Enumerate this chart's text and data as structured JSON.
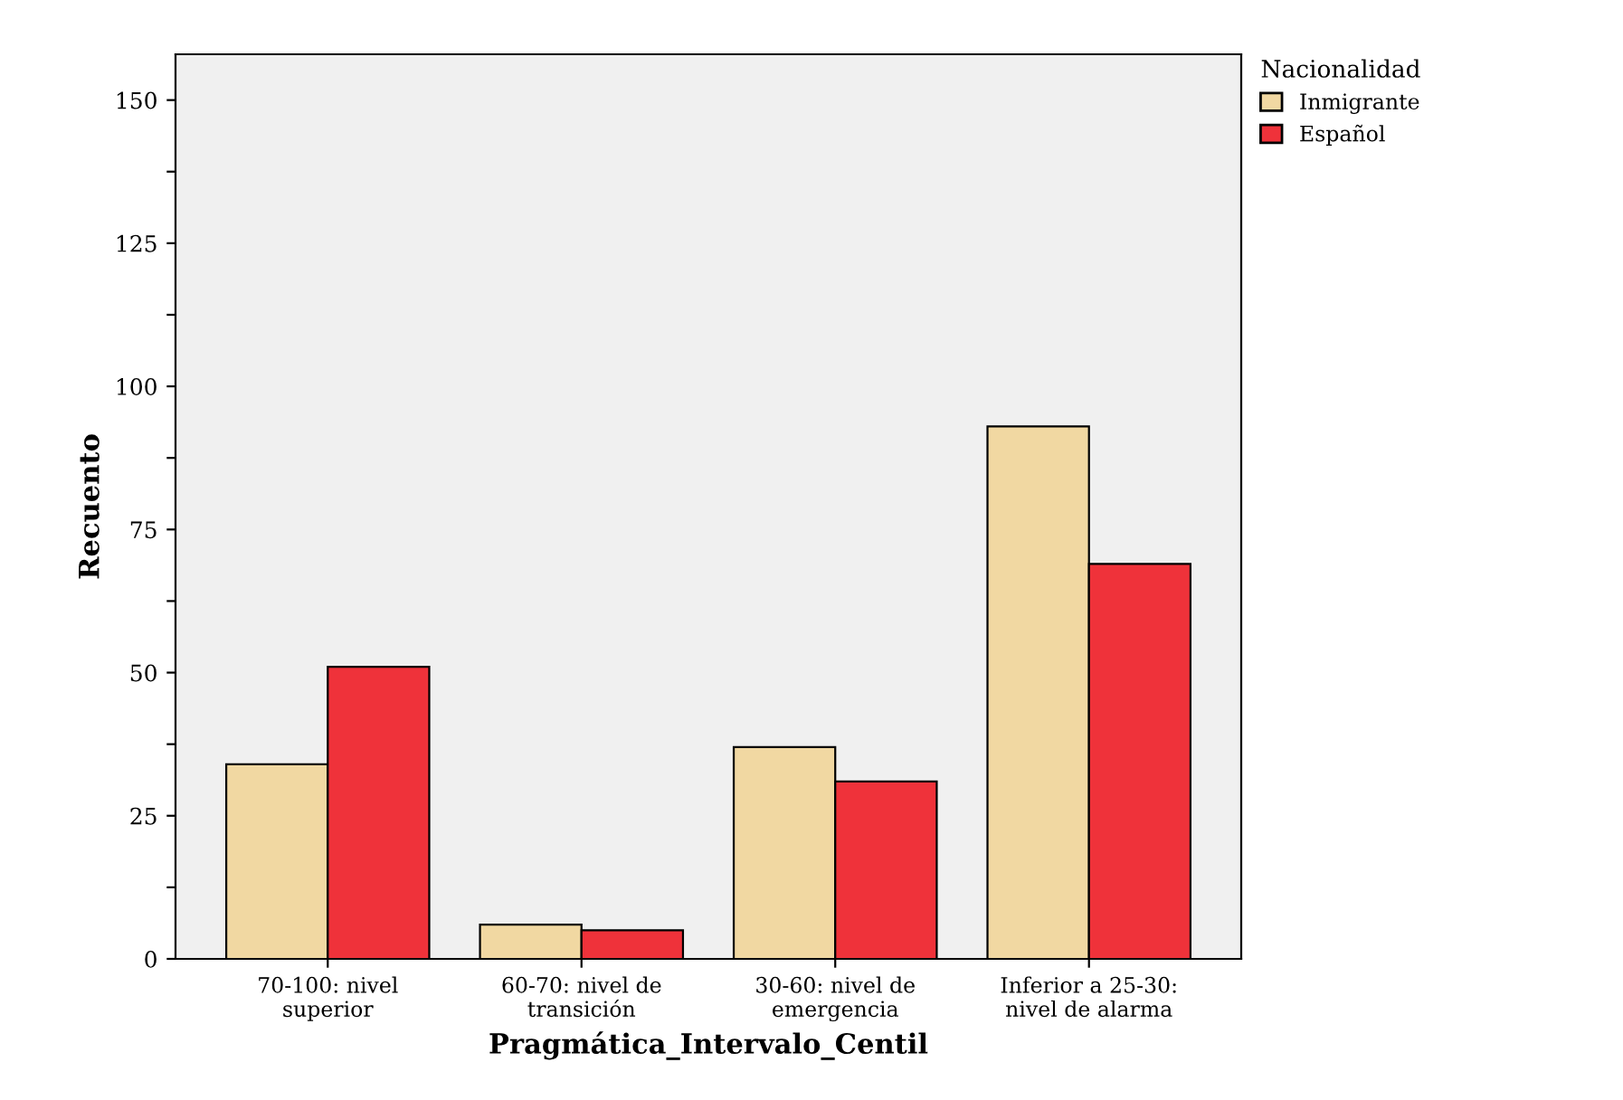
{
  "chart_data": {
    "type": "bar",
    "xlabel": "Pragmática_Intervalo_Centil",
    "ylabel": "Recuento",
    "categories": [
      "70-100: nivel\nsuperior",
      "60-70: nivel de\ntransición",
      "30-60: nivel de\nemergencia",
      "Inferior a 25-30:\nnivel de alarma"
    ],
    "series": [
      {
        "name": "Inmigrante",
        "color": "#f1d8a2",
        "values": [
          34,
          6,
          37,
          93
        ]
      },
      {
        "name": "Español",
        "color": "#ef323a",
        "values": [
          51,
          5,
          31,
          69
        ]
      }
    ],
    "legend_title": "Nacionalidad",
    "legend": "top right",
    "ylim": [
      0,
      158
    ],
    "yticks": [
      0,
      {
        "value": 12.5,
        "label": null
      },
      25,
      {
        "value": 37.5,
        "label": null
      },
      50,
      {
        "value": 62.5,
        "label": null
      },
      75,
      {
        "value": 87.5,
        "label": null
      },
      100,
      {
        "value": 112.5,
        "label": null
      },
      125,
      {
        "value": 137.5,
        "label": null
      },
      150
    ],
    "grid": false
  }
}
